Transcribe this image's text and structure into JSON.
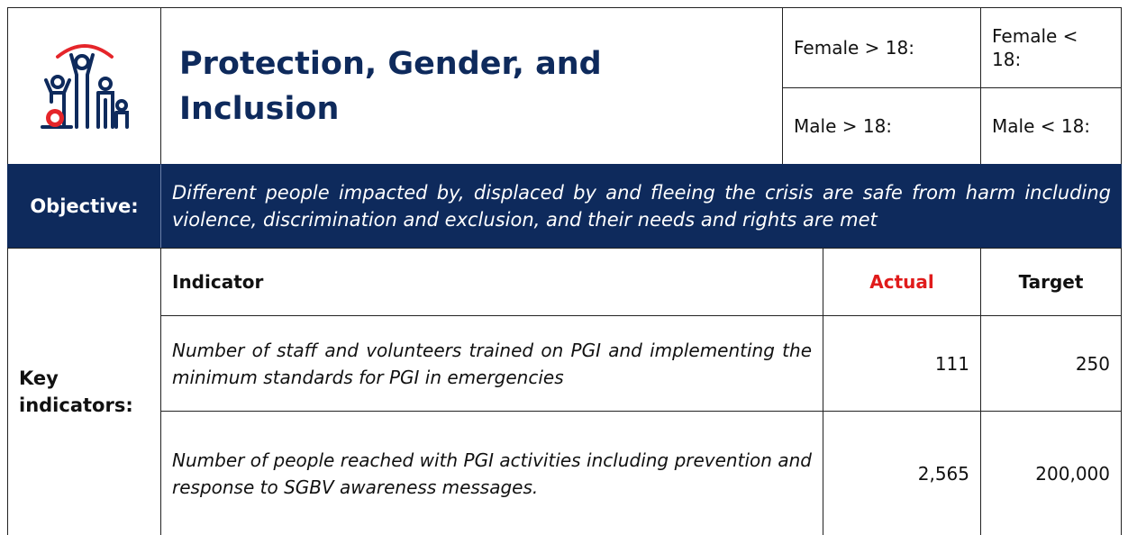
{
  "header": {
    "title": "Protection, Gender, and Inclusion",
    "demographics": [
      "Female > 18:",
      "Female < 18:",
      "Male > 18:",
      "Male < 18:"
    ]
  },
  "objective": {
    "label": "Objective:",
    "text": "Different people impacted by, displaced by and fleeing the crisis are safe from harm including violence, discrimination and exclusion, and their needs and rights are met"
  },
  "key_indicators": {
    "label": "Key indicators:",
    "columns": [
      "Indicator",
      "Actual",
      "Target"
    ],
    "rows": [
      [
        "Number of staff and volunteers trained on PGI and implementing the minimum standards for PGI in emergencies",
        "111",
        "250"
      ],
      [
        "Number of people reached with PGI activities including prevention and response to SGBV awareness messages.",
        "2,565",
        "200,000"
      ]
    ]
  }
}
